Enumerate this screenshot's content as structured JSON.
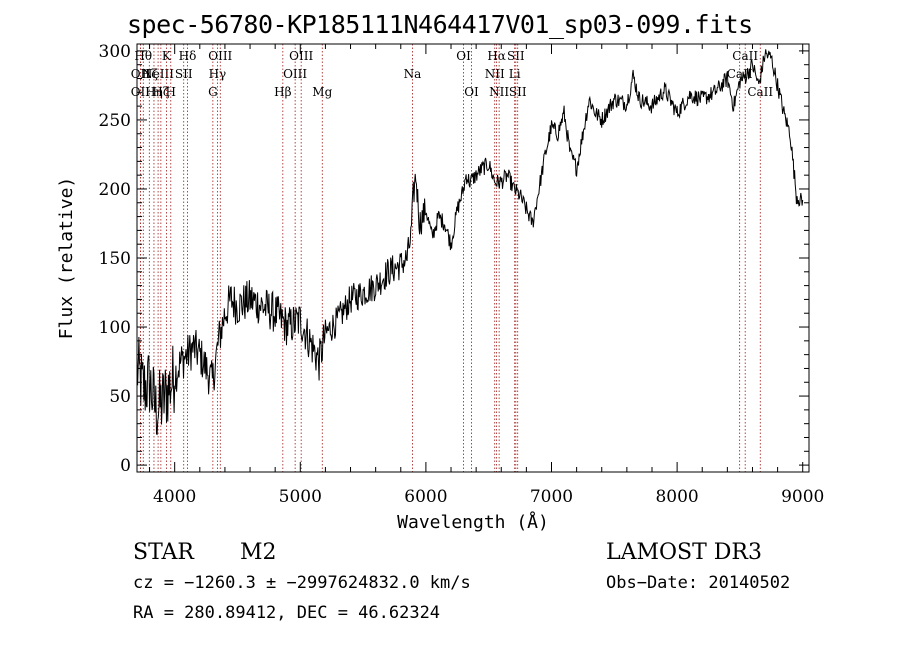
{
  "chart_data": {
    "type": "line",
    "title": "spec-56780-KP185111N464417V01_sp03-099.fits",
    "xlabel": "Wavelength (Å)",
    "ylabel": "Flux (relative)",
    "xlim": [
      3700,
      9050
    ],
    "ylim": [
      -5,
      305
    ],
    "xticks": [
      4000,
      5000,
      6000,
      7000,
      8000,
      9000
    ],
    "yticks": [
      0,
      50,
      100,
      150,
      200,
      250,
      300
    ],
    "series": [
      {
        "name": "flux",
        "x": [
          3700,
          3750,
          3800,
          3850,
          3900,
          3950,
          4000,
          4050,
          4100,
          4150,
          4200,
          4250,
          4300,
          4350,
          4400,
          4450,
          4500,
          4600,
          4700,
          4800,
          4900,
          5000,
          5100,
          5150,
          5200,
          5300,
          5400,
          5500,
          5600,
          5700,
          5800,
          5850,
          5880,
          5900,
          5920,
          5950,
          6000,
          6050,
          6100,
          6150,
          6200,
          6250,
          6300,
          6320,
          6350,
          6400,
          6450,
          6500,
          6550,
          6600,
          6650,
          6700,
          6750,
          6800,
          6850,
          6900,
          6950,
          7000,
          7050,
          7100,
          7150,
          7200,
          7250,
          7300,
          7350,
          7400,
          7500,
          7600,
          7650,
          7700,
          7800,
          7900,
          8000,
          8100,
          8200,
          8300,
          8400,
          8450,
          8500,
          8550,
          8600,
          8650,
          8700,
          8750,
          8800,
          8850,
          8900,
          8950,
          9000
        ],
        "y": [
          70,
          55,
          60,
          40,
          45,
          55,
          65,
          75,
          80,
          85,
          80,
          70,
          60,
          90,
          110,
          120,
          115,
          120,
          115,
          110,
          100,
          105,
          85,
          75,
          95,
          105,
          120,
          125,
          130,
          140,
          145,
          150,
          165,
          195,
          210,
          175,
          185,
          165,
          180,
          175,
          160,
          185,
          200,
          210,
          205,
          210,
          215,
          218,
          205,
          205,
          210,
          200,
          195,
          185,
          175,
          200,
          225,
          245,
          240,
          255,
          225,
          215,
          240,
          265,
          255,
          250,
          265,
          262,
          282,
          265,
          260,
          272,
          255,
          268,
          265,
          270,
          280,
          260,
          278,
          282,
          290,
          275,
          298,
          295,
          275,
          255,
          240,
          195,
          190
        ]
      }
    ],
    "lines": [
      {
        "wl": 3750,
        "row": 0,
        "label": "Hθ"
      },
      {
        "wl": 3727,
        "row": 1,
        "label": "OII"
      },
      {
        "wl": 3727,
        "row": 2,
        "label": "OII"
      },
      {
        "wl": 3798,
        "row": 1,
        "label": "Hζ"
      },
      {
        "wl": 3835,
        "row": 2,
        "label": "Hη"
      },
      {
        "wl": 3868,
        "row": 1,
        "label": "NeIII"
      },
      {
        "wl": 3890,
        "row": 2,
        "label": "Hζ"
      },
      {
        "wl": 3934,
        "row": 0,
        "label": "K"
      },
      {
        "wl": 3969,
        "row": 2,
        "label": "H"
      },
      {
        "wl": 4072,
        "row": 1,
        "label": "SII"
      },
      {
        "wl": 4102,
        "row": 0,
        "label": "Hδ"
      },
      {
        "wl": 4304,
        "row": 2,
        "label": "G"
      },
      {
        "wl": 4340,
        "row": 1,
        "label": "Hγ"
      },
      {
        "wl": 4363,
        "row": 0,
        "label": "OIII"
      },
      {
        "wl": 4861,
        "row": 2,
        "label": "Hβ"
      },
      {
        "wl": 4959,
        "row": 1,
        "label": "OIII"
      },
      {
        "wl": 5007,
        "row": 0,
        "label": "OIII"
      },
      {
        "wl": 5175,
        "row": 2,
        "label": "Mg"
      },
      {
        "wl": 5893,
        "row": 1,
        "label": "Na"
      },
      {
        "wl": 6300,
        "row": 0,
        "label": "OI"
      },
      {
        "wl": 6363,
        "row": 2,
        "label": "OI"
      },
      {
        "wl": 6548,
        "row": 1,
        "label": "NII"
      },
      {
        "wl": 6563,
        "row": 0,
        "label": "Hα"
      },
      {
        "wl": 6583,
        "row": 2,
        "label": "NII"
      },
      {
        "wl": 6707,
        "row": 1,
        "label": "Li"
      },
      {
        "wl": 6716,
        "row": 0,
        "label": "SII"
      },
      {
        "wl": 6731,
        "row": 2,
        "label": "SII"
      },
      {
        "wl": 8498,
        "row": 1,
        "label": "CaII"
      },
      {
        "wl": 8542,
        "row": 0,
        "label": "CaII"
      },
      {
        "wl": 8662,
        "row": 2,
        "label": "CaII"
      }
    ]
  },
  "info": {
    "object_class": "STAR",
    "subclass": "M2",
    "survey": "LAMOST DR3",
    "cz": "cz = −1260.3 ± −2997624832.0 km/s",
    "obs_date": "Obs−Date: 20140502",
    "coords": "RA = 280.89412, DEC =  46.62324"
  }
}
